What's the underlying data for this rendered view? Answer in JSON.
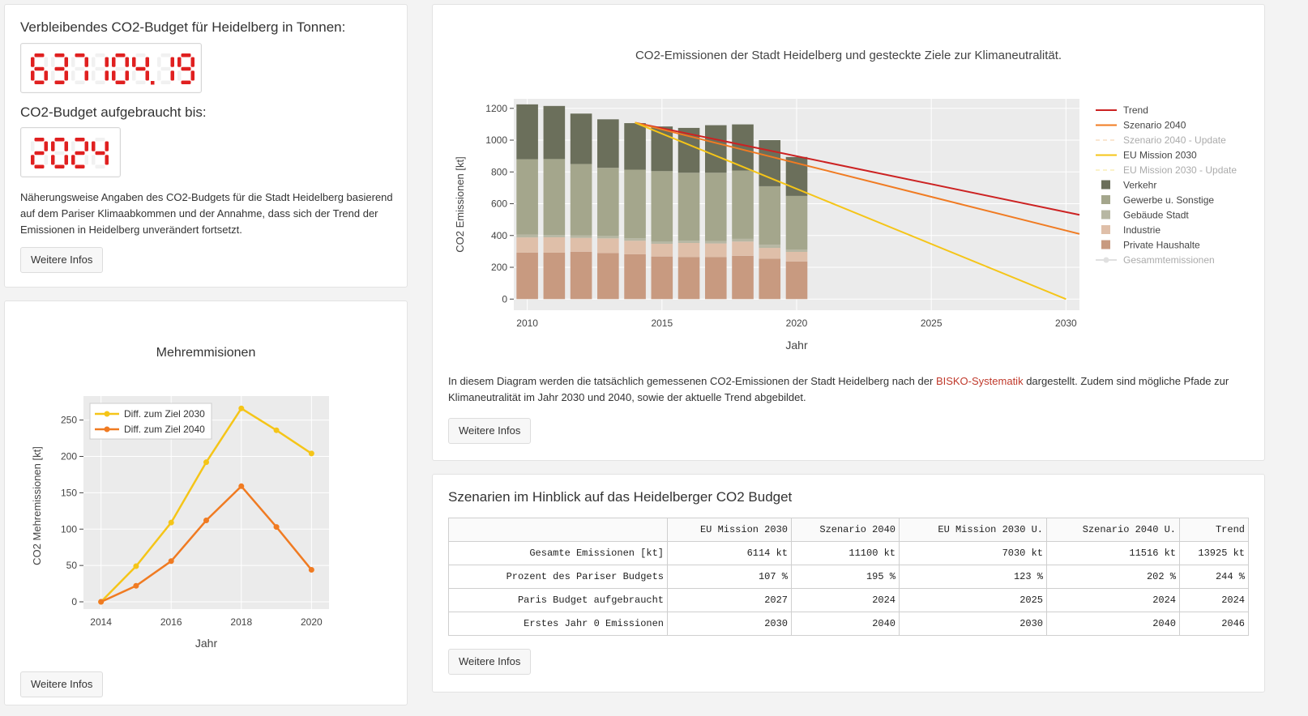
{
  "budget": {
    "label": "Verbleibendes CO2-Budget für Heidelberg in Tonnen:",
    "value": "637104.19",
    "until_label": "CO2-Budget aufgebraucht bis:",
    "until_value": "2024",
    "description": "Näherungsweise Angaben des CO2-Budgets für die Stadt Heidelberg basierend auf dem Pariser Klimaabkommen und der Annahme, dass sich der Trend der Emissionen in Heidelberg unverändert fortsetzt.",
    "button": "Weitere Infos"
  },
  "mehr": {
    "button": "Weitere Infos"
  },
  "main": {
    "description_before": "In diesem Diagram werden die tatsächlich gemessenen CO2-Emissionen der Stadt Heidelberg nach der ",
    "description_link": "BISKO-Systematik",
    "description_after": " dargestellt. Zudem sind mögliche Pfade zur Klimaneutralität im Jahr 2030 und 2040, sowie der aktuelle Trend abgebildet.",
    "button": "Weitere Infos"
  },
  "scenarios": {
    "title": "Szenarien im Hinblick auf das Heidelberger CO2 Budget",
    "columns": [
      "",
      "EU Mission 2030",
      "Szenario 2040",
      "EU Mission 2030 U.",
      "Szenario 2040 U.",
      "Trend"
    ],
    "rows": [
      [
        "Gesamte Emissionen [kt]",
        "6114 kt",
        "11100 kt",
        "7030 kt",
        "11516 kt",
        "13925 kt"
      ],
      [
        "Prozent des Pariser Budgets",
        "107 %",
        "195 %",
        "123 %",
        "202 %",
        "244 %"
      ],
      [
        "Paris Budget aufgebraucht",
        "2027",
        "2024",
        "2025",
        "2024",
        "2024"
      ],
      [
        "Erstes Jahr 0 Emissionen",
        "2030",
        "2040",
        "2030",
        "2040",
        "2046"
      ]
    ],
    "button": "Weitere Infos"
  },
  "chart_data": [
    {
      "id": "emissions",
      "type": "bar",
      "title": "CO2-Emissionen der Stadt Heidelberg und gesteckte Ziele zur Klimaneutralität.",
      "xlabel": "Jahr",
      "ylabel": "CO2 Emissionen [kt]",
      "xlim": [
        2009.5,
        2030.5
      ],
      "ylim": [
        -70,
        1260
      ],
      "xticks": [
        2010,
        2015,
        2020,
        2025,
        2030
      ],
      "yticks": [
        0,
        200,
        400,
        600,
        800,
        1000,
        1200
      ],
      "categories": [
        2010,
        2011,
        2012,
        2013,
        2014,
        2015,
        2016,
        2017,
        2018,
        2019,
        2020
      ],
      "stacked": true,
      "series": [
        {
          "name": "Private Haushalte",
          "color": "#c89a80",
          "values": [
            293,
            292,
            298,
            290,
            282,
            268,
            265,
            265,
            272,
            254,
            237
          ]
        },
        {
          "name": "Industrie",
          "color": "#dfbfa9",
          "values": [
            95,
            97,
            87,
            92,
            85,
            80,
            88,
            85,
            90,
            68,
            60
          ]
        },
        {
          "name": "Gebäude Stadt",
          "color": "#b7b7a3",
          "values": [
            18,
            14,
            16,
            15,
            16,
            15,
            14,
            15,
            17,
            20,
            15
          ]
        },
        {
          "name": "Gewerbe u. Sonstige",
          "color": "#a4a68c",
          "values": [
            474,
            478,
            449,
            429,
            431,
            442,
            428,
            430,
            430,
            368,
            337
          ]
        },
        {
          "name": "Verkehr",
          "color": "#6b6f5b",
          "values": [
            345,
            334,
            317,
            305,
            293,
            281,
            282,
            299,
            290,
            290,
            245
          ]
        }
      ],
      "lines": [
        {
          "name": "Trend",
          "color": "#cc2222",
          "x": [
            2014,
            2030.5
          ],
          "y": [
            1110,
            530
          ]
        },
        {
          "name": "Szenario 2040",
          "color": "#f07b22",
          "x": [
            2014,
            2030.5
          ],
          "y": [
            1110,
            410
          ]
        },
        {
          "name": "Szenario 2040 - Update",
          "color": "#f5c99a",
          "dashed": true,
          "x": [],
          "y": []
        },
        {
          "name": "EU Mission 2030",
          "color": "#f5c518",
          "x": [
            2014,
            2030
          ],
          "y": [
            1110,
            0
          ]
        },
        {
          "name": "EU Mission 2030 - Update",
          "color": "#f8e48a",
          "dashed": true,
          "x": [],
          "y": []
        },
        {
          "name": "Gesammtemissionen",
          "color": "#bbbbbb",
          "x": [],
          "y": []
        }
      ],
      "legend": {
        "position": "right",
        "items": [
          {
            "name": "Trend",
            "kind": "line",
            "color": "#cc2222",
            "faded": false
          },
          {
            "name": "Szenario 2040",
            "kind": "line",
            "color": "#f07b22",
            "faded": false
          },
          {
            "name": "Szenario 2040 - Update",
            "kind": "dash",
            "color": "#f5c99a",
            "faded": true
          },
          {
            "name": "EU Mission 2030",
            "kind": "line",
            "color": "#f5c518",
            "faded": false
          },
          {
            "name": "EU Mission 2030 - Update",
            "kind": "dash",
            "color": "#f8e48a",
            "faded": true
          },
          {
            "name": "Verkehr",
            "kind": "box",
            "color": "#6b6f5b",
            "faded": false
          },
          {
            "name": "Gewerbe u. Sonstige",
            "kind": "box",
            "color": "#a4a68c",
            "faded": false
          },
          {
            "name": "Gebäude Stadt",
            "kind": "box",
            "color": "#b7b7a3",
            "faded": false
          },
          {
            "name": "Industrie",
            "kind": "box",
            "color": "#dfbfa9",
            "faded": false
          },
          {
            "name": "Private Haushalte",
            "kind": "box",
            "color": "#c89a80",
            "faded": false
          },
          {
            "name": "Gesammtemissionen",
            "kind": "marker",
            "color": "#bbbbbb",
            "faded": true
          }
        ]
      }
    },
    {
      "id": "mehremissionen",
      "type": "line",
      "title": "Mehremmisionen",
      "xlabel": "Jahr",
      "ylabel": "CO2 Mehremissionen [kt]",
      "xlim": [
        2013.5,
        2020.5
      ],
      "ylim": [
        -10,
        283
      ],
      "xticks": [
        2014,
        2016,
        2018,
        2020
      ],
      "yticks": [
        0,
        50,
        100,
        150,
        200,
        250
      ],
      "legend": {
        "position": "top-left"
      },
      "series": [
        {
          "name": "Diff. zum Ziel 2030",
          "color": "#f5c518",
          "x": [
            2014,
            2015,
            2016,
            2017,
            2018,
            2019,
            2020
          ],
          "y": [
            0,
            49,
            109,
            192,
            266,
            236,
            204
          ]
        },
        {
          "name": "Diff. zum Ziel 2040",
          "color": "#f07b22",
          "x": [
            2014,
            2015,
            2016,
            2017,
            2018,
            2019,
            2020
          ],
          "y": [
            0,
            22,
            56,
            112,
            159,
            103,
            44
          ]
        }
      ]
    }
  ]
}
